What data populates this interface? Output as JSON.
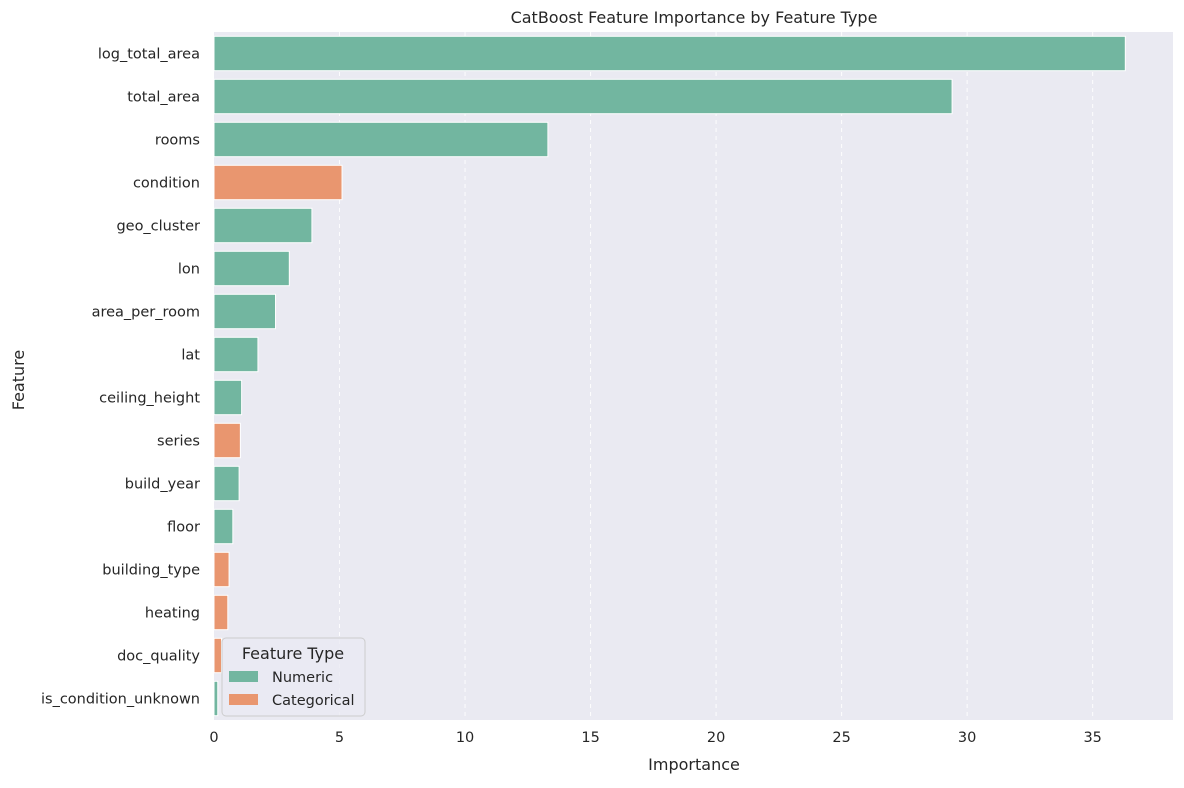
{
  "chart_data": {
    "type": "bar",
    "orientation": "horizontal",
    "title": "CatBoost Feature Importance by Feature Type",
    "xlabel": "Importance",
    "ylabel": "Feature",
    "xlim": [
      0,
      38.2
    ],
    "xticks": [
      0,
      5,
      10,
      15,
      20,
      25,
      30,
      35
    ],
    "grid": true,
    "legend": {
      "title": "Feature Type",
      "placement": "lower-left",
      "entries": [
        {
          "name": "Numeric",
          "color": "#72b6a0"
        },
        {
          "name": "Categorical",
          "color": "#e9966f"
        }
      ]
    },
    "categories": [
      "log_total_area",
      "total_area",
      "rooms",
      "condition",
      "geo_cluster",
      "lon",
      "area_per_room",
      "lat",
      "ceiling_height",
      "series",
      "build_year",
      "floor",
      "building_type",
      "heating",
      "doc_quality",
      "is_condition_unknown"
    ],
    "values": [
      36.3,
      29.4,
      13.3,
      5.1,
      3.9,
      3.0,
      2.45,
      1.75,
      1.1,
      1.05,
      1.0,
      0.75,
      0.6,
      0.55,
      0.3,
      0.15
    ],
    "types": [
      "Numeric",
      "Numeric",
      "Numeric",
      "Categorical",
      "Numeric",
      "Numeric",
      "Numeric",
      "Numeric",
      "Numeric",
      "Categorical",
      "Numeric",
      "Numeric",
      "Categorical",
      "Categorical",
      "Categorical",
      "Numeric"
    ]
  },
  "colors": {
    "background": "#eaeaf2",
    "grid": "#ffffff",
    "text": "#262626"
  }
}
